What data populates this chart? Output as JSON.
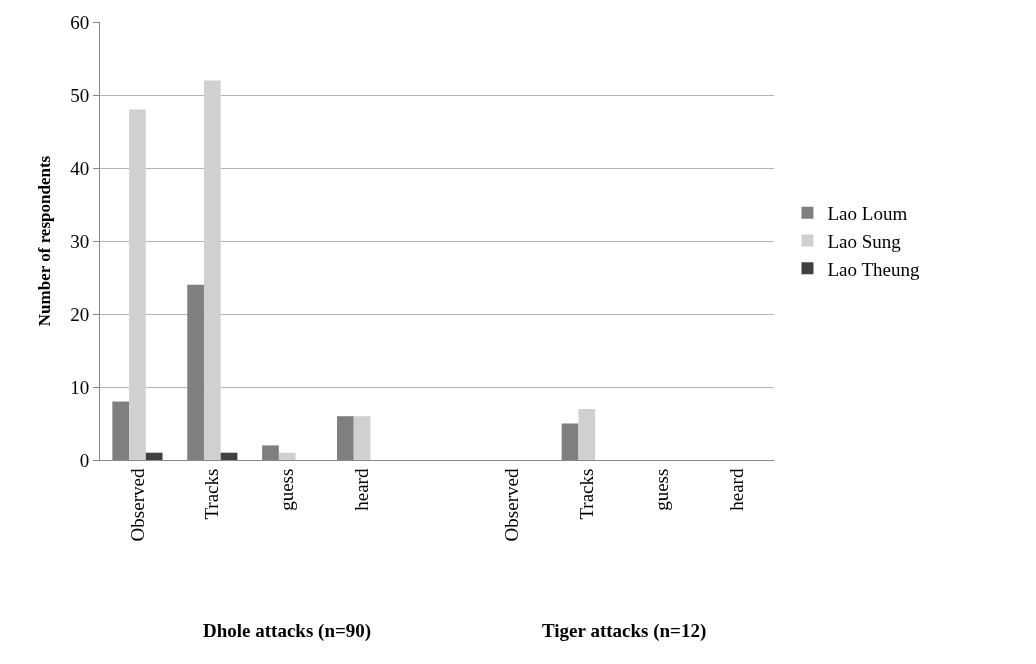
{
  "chart_data": {
    "type": "bar",
    "ylabel": "Number of respondents",
    "categories": [
      "Observed",
      "Tracks",
      "guess",
      "heard",
      null,
      "Observed",
      "Tracks",
      "guess",
      "heard"
    ],
    "series": [
      {
        "name": "Lao Loum",
        "color": "#7f7f7f",
        "values": [
          8,
          24,
          2,
          6,
          0,
          0,
          5,
          0,
          0
        ]
      },
      {
        "name": "Lao Sung",
        "color": "#d0d0d0",
        "values": [
          48,
          52,
          1,
          6,
          0,
          0,
          7,
          0,
          0
        ]
      },
      {
        "name": "Lao Theung",
        "color": "#404040",
        "values": [
          1,
          1,
          0,
          0,
          0,
          0,
          0,
          0,
          0
        ]
      }
    ],
    "ylim": [
      0,
      60
    ],
    "yticks": [
      0,
      10,
      20,
      30,
      40,
      50,
      60
    ],
    "grid": "y",
    "legend": "right",
    "annotations": [
      "Dhole attacks (n=90)",
      "Tiger attacks (n=12)"
    ]
  }
}
